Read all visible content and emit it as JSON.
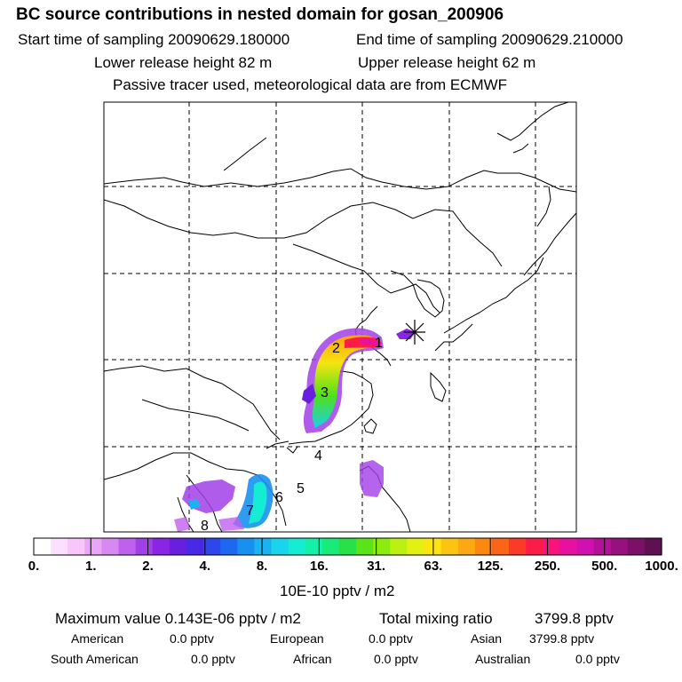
{
  "header": {
    "title": "BC  source contributions in nested domain for gosan_200906",
    "start_label": "Start time of sampling 20090629.180000",
    "end_label": "End time of sampling 20090629.210000",
    "lower_label": "Lower release height   82 m",
    "upper_label": "Upper release height   62 m",
    "tracer_note": "Passive tracer used, meteorological data are from ECMWF"
  },
  "map": {
    "receptor_marker": "star",
    "region_labels": [
      "1",
      "2",
      "3",
      "4",
      "5",
      "6",
      "7",
      "8"
    ]
  },
  "colorbar": {
    "tick_labels": [
      "0.",
      "1.",
      "2.",
      "4.",
      "8.",
      "16.",
      "31.",
      "63.",
      "125.",
      "250.",
      "500.",
      "1000."
    ],
    "unit": "10E-10 pptv / m2",
    "colors": [
      "#ffffff",
      "#fde0ff",
      "#f8c6fb",
      "#eaa6f6",
      "#d888f2",
      "#c060ee",
      "#a23fe8",
      "#8a25e6",
      "#6a1ee0",
      "#4a28e8",
      "#2e46ee",
      "#1c68f0",
      "#1890f0",
      "#1cb2f0",
      "#18d4ec",
      "#14ecd4",
      "#14f0a8",
      "#18ec78",
      "#28e048",
      "#5ae418",
      "#8cec10",
      "#bcf010",
      "#e4f010",
      "#fce410",
      "#fcc410",
      "#fca810",
      "#fc8810",
      "#fc6418",
      "#fc3a28",
      "#fc1c48",
      "#f81478",
      "#e810a0",
      "#d010b0",
      "#b41098",
      "#981080",
      "#7c1068",
      "#601052"
    ]
  },
  "summary": {
    "max_label": "Maximum value  0.143E-06 pptv / m2",
    "total_label": "Total mixing ratio",
    "total_value": "3799.8 pptv",
    "american_label": "American",
    "american_value": "0.0 pptv",
    "european_label": "European",
    "european_value": "0.0 pptv",
    "asian_label": "Asian",
    "asian_value": "3799.8 pptv",
    "south_american_label": "South American",
    "south_american_value": "0.0 pptv",
    "african_label": "African",
    "african_value": "0.0 pptv",
    "australian_label": "Australian",
    "australian_value": "0.0 pptv"
  }
}
